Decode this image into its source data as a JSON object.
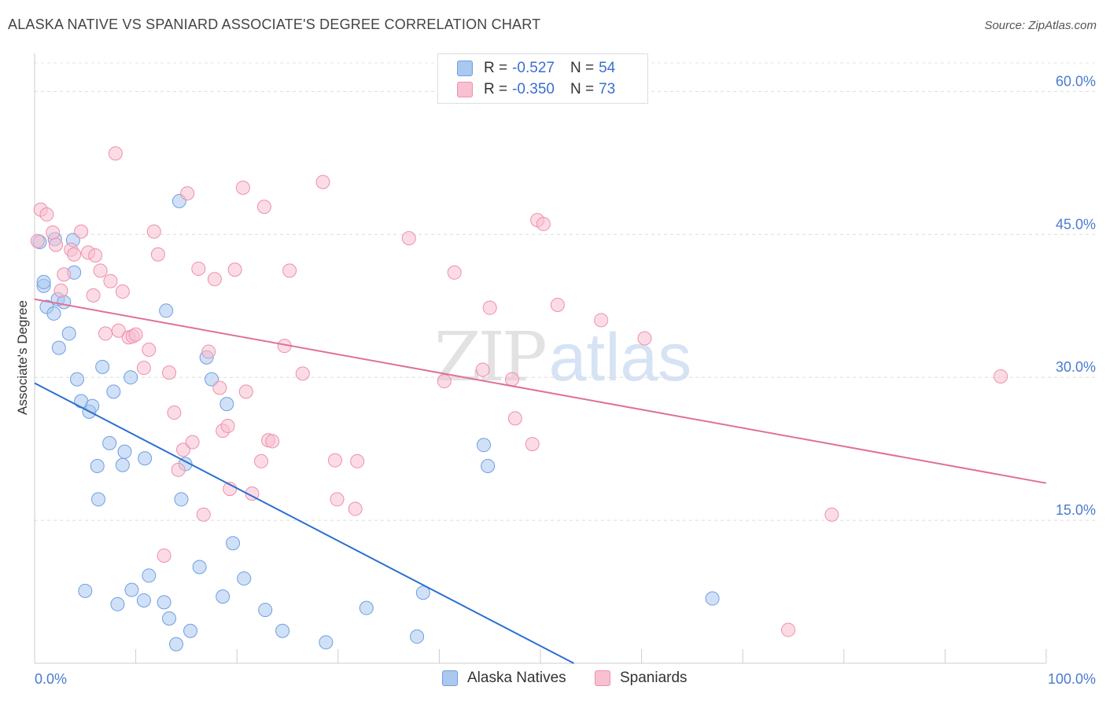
{
  "title": "ALASKA NATIVE VS SPANIARD ASSOCIATE'S DEGREE CORRELATION CHART",
  "source": "Source: ZipAtlas.com",
  "watermark": {
    "zip": "ZIP",
    "atlas": "atlas"
  },
  "legend": {
    "rows": [
      {
        "r_label": "R =",
        "r_value": "-0.527",
        "n_label": "N =",
        "n_value": "54",
        "color": "#aac8f0",
        "border": "#6f9fe0"
      },
      {
        "r_label": "R =",
        "r_value": "-0.350",
        "n_label": "N =",
        "n_value": "73",
        "color": "#f8c0d0",
        "border": "#ee8fac"
      }
    ]
  },
  "bottom_legend": [
    {
      "label": "Alaska Natives",
      "color": "#aac8f0",
      "border": "#6f9fe0"
    },
    {
      "label": "Spaniards",
      "color": "#f8c0d0",
      "border": "#ee8fac"
    }
  ],
  "chart_data": {
    "type": "scatter",
    "ylabel": "Associate's Degree",
    "xlim": [
      0,
      100
    ],
    "ylim": [
      0,
      63
    ],
    "y_ticks": [
      {
        "value": 15,
        "label": "15.0%"
      },
      {
        "value": 30,
        "label": "30.0%"
      },
      {
        "value": 45,
        "label": "45.0%"
      },
      {
        "value": 60,
        "label": "60.0%"
      }
    ],
    "x_ticks": [
      {
        "value": 0,
        "label": "0.0%"
      },
      {
        "value": 100,
        "label": "100.0%"
      }
    ],
    "series": [
      {
        "name": "Alaska Natives",
        "color": "#6f9fe0",
        "fill": "#aac8f0",
        "trend_color": "#2b6fd0",
        "trend": [
          [
            0,
            29.4
          ],
          [
            53.3,
            0
          ]
        ],
        "points": [
          [
            0.5,
            44.2
          ],
          [
            0.9,
            39.6
          ],
          [
            0.9,
            40.0
          ],
          [
            1.2,
            37.4
          ],
          [
            1.9,
            36.7
          ],
          [
            2.0,
            44.5
          ],
          [
            2.3,
            38.2
          ],
          [
            2.4,
            33.1
          ],
          [
            2.9,
            37.9
          ],
          [
            3.4,
            34.6
          ],
          [
            3.9,
            41.0
          ],
          [
            3.8,
            44.4
          ],
          [
            4.2,
            29.8
          ],
          [
            4.6,
            27.5
          ],
          [
            5.0,
            7.6
          ],
          [
            5.4,
            26.4
          ],
          [
            5.7,
            27.0
          ],
          [
            6.2,
            20.7
          ],
          [
            6.3,
            17.2
          ],
          [
            6.7,
            31.1
          ],
          [
            7.4,
            23.1
          ],
          [
            7.8,
            28.5
          ],
          [
            8.2,
            6.2
          ],
          [
            8.7,
            20.8
          ],
          [
            8.9,
            22.2
          ],
          [
            9.5,
            30.0
          ],
          [
            9.6,
            7.7
          ],
          [
            10.8,
            6.6
          ],
          [
            10.9,
            21.5
          ],
          [
            11.3,
            9.2
          ],
          [
            12.8,
            6.4
          ],
          [
            13.0,
            37.0
          ],
          [
            13.3,
            4.7
          ],
          [
            14.0,
            2.0
          ],
          [
            14.3,
            48.5
          ],
          [
            14.5,
            17.2
          ],
          [
            14.9,
            20.9
          ],
          [
            15.4,
            3.4
          ],
          [
            16.3,
            10.1
          ],
          [
            17.0,
            32.1
          ],
          [
            17.5,
            29.8
          ],
          [
            18.6,
            7.0
          ],
          [
            19.0,
            27.2
          ],
          [
            19.6,
            12.6
          ],
          [
            20.7,
            8.9
          ],
          [
            22.8,
            5.6
          ],
          [
            24.5,
            3.4
          ],
          [
            28.8,
            2.2
          ],
          [
            32.8,
            5.8
          ],
          [
            37.8,
            2.8
          ],
          [
            38.4,
            7.4
          ],
          [
            44.4,
            22.9
          ],
          [
            44.8,
            20.7
          ],
          [
            67.0,
            6.8
          ]
        ]
      },
      {
        "name": "Spaniards",
        "color": "#ee8fac",
        "fill": "#f8c0d0",
        "trend_color": "#e07098",
        "trend": [
          [
            0,
            38.2
          ],
          [
            100,
            18.9
          ]
        ],
        "points": [
          [
            0.3,
            44.3
          ],
          [
            0.6,
            47.6
          ],
          [
            1.2,
            47.1
          ],
          [
            1.8,
            45.2
          ],
          [
            2.1,
            43.9
          ],
          [
            2.6,
            39.1
          ],
          [
            2.9,
            40.8
          ],
          [
            3.6,
            43.4
          ],
          [
            3.9,
            42.9
          ],
          [
            4.6,
            45.3
          ],
          [
            5.3,
            43.1
          ],
          [
            5.8,
            38.6
          ],
          [
            6.0,
            42.8
          ],
          [
            6.5,
            41.2
          ],
          [
            7.0,
            34.6
          ],
          [
            7.5,
            40.1
          ],
          [
            8.0,
            53.5
          ],
          [
            8.3,
            34.9
          ],
          [
            8.7,
            39.0
          ],
          [
            9.3,
            34.2
          ],
          [
            9.7,
            34.3
          ],
          [
            10.0,
            34.5
          ],
          [
            10.8,
            31.0
          ],
          [
            11.3,
            32.9
          ],
          [
            11.8,
            45.3
          ],
          [
            12.2,
            42.9
          ],
          [
            12.8,
            11.3
          ],
          [
            13.3,
            30.5
          ],
          [
            13.8,
            26.3
          ],
          [
            14.2,
            20.3
          ],
          [
            14.7,
            22.4
          ],
          [
            15.1,
            49.3
          ],
          [
            15.6,
            23.2
          ],
          [
            16.2,
            41.4
          ],
          [
            16.7,
            15.6
          ],
          [
            17.2,
            32.7
          ],
          [
            17.8,
            40.3
          ],
          [
            18.3,
            28.9
          ],
          [
            18.6,
            24.4
          ],
          [
            19.1,
            24.9
          ],
          [
            19.3,
            18.3
          ],
          [
            19.8,
            41.3
          ],
          [
            20.6,
            49.9
          ],
          [
            20.9,
            28.5
          ],
          [
            21.5,
            17.8
          ],
          [
            22.4,
            21.2
          ],
          [
            22.7,
            47.9
          ],
          [
            23.1,
            23.4
          ],
          [
            23.5,
            23.3
          ],
          [
            24.7,
            33.3
          ],
          [
            25.2,
            41.2
          ],
          [
            26.5,
            30.4
          ],
          [
            28.5,
            50.5
          ],
          [
            29.7,
            21.3
          ],
          [
            29.9,
            17.2
          ],
          [
            31.7,
            16.2
          ],
          [
            31.9,
            21.2
          ],
          [
            37.0,
            44.6
          ],
          [
            40.5,
            29.6
          ],
          [
            41.5,
            41.0
          ],
          [
            44.3,
            30.8
          ],
          [
            45.0,
            37.3
          ],
          [
            47.2,
            29.8
          ],
          [
            47.5,
            25.7
          ],
          [
            49.2,
            23.0
          ],
          [
            49.7,
            46.5
          ],
          [
            50.3,
            46.1
          ],
          [
            51.7,
            37.6
          ],
          [
            56.0,
            36.0
          ],
          [
            60.3,
            34.1
          ],
          [
            74.5,
            3.5
          ],
          [
            78.8,
            15.6
          ],
          [
            95.5,
            30.1
          ]
        ]
      }
    ]
  }
}
